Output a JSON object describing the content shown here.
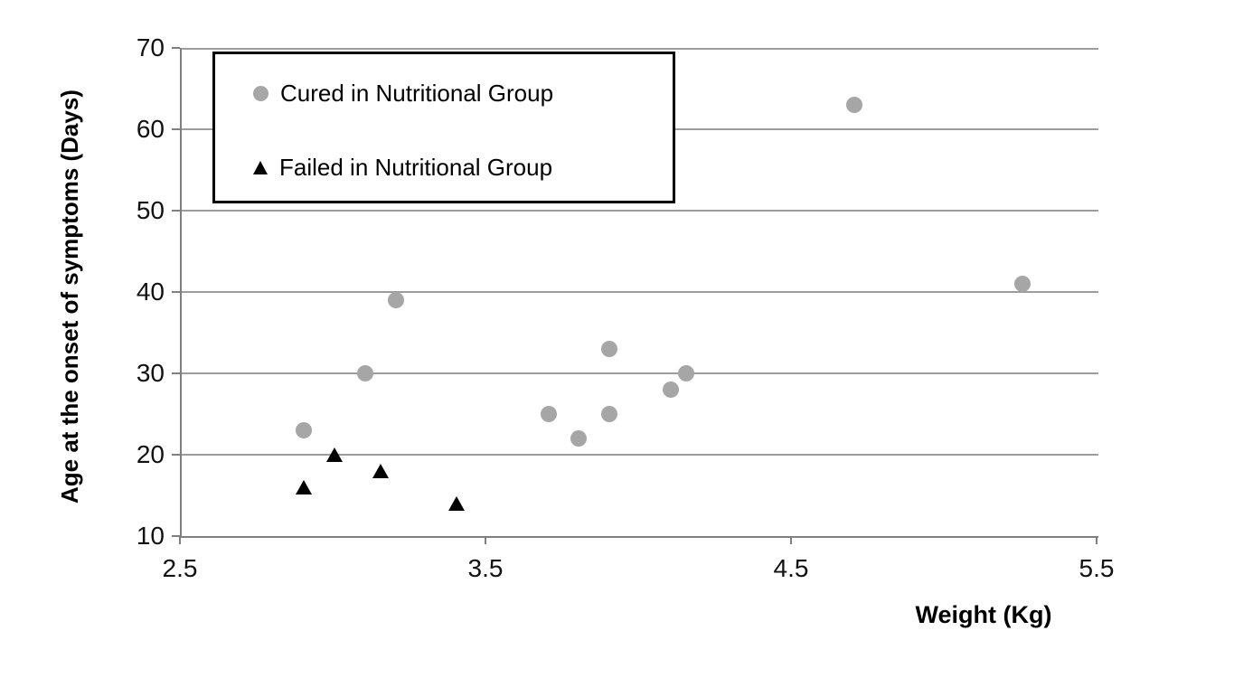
{
  "chart_data": {
    "type": "scatter",
    "title": "",
    "xlabel": "Weight (Kg)",
    "ylabel": "Age at the onset of symptoms (Days)",
    "xlim": [
      2.5,
      5.5
    ],
    "ylim": [
      10,
      70
    ],
    "x_ticks": [
      2.5,
      3.5,
      4.5,
      5.5
    ],
    "y_ticks": [
      10,
      20,
      30,
      40,
      50,
      60,
      70
    ],
    "grid": "horizontal-only",
    "legend_position": "top-left-inside",
    "series": [
      {
        "name": "Cured in Nutritional Group",
        "marker": "circle",
        "color": "#a6a6a6",
        "points": [
          [
            2.9,
            23
          ],
          [
            3.1,
            30
          ],
          [
            3.2,
            39
          ],
          [
            3.7,
            25
          ],
          [
            3.8,
            22
          ],
          [
            3.9,
            25
          ],
          [
            3.9,
            33
          ],
          [
            4.1,
            28
          ],
          [
            4.15,
            30
          ],
          [
            4.7,
            63
          ],
          [
            5.25,
            41
          ]
        ]
      },
      {
        "name": "Failed in Nutritional Group",
        "marker": "triangle",
        "color": "#000000",
        "points": [
          [
            2.9,
            16
          ],
          [
            3.0,
            20
          ],
          [
            3.15,
            18
          ],
          [
            3.4,
            14
          ]
        ]
      }
    ]
  },
  "colors": {
    "gridline": "#9d9d9d",
    "axis_line": "#7f7f7f",
    "tick_text": "#111111",
    "title_text": "#000000",
    "background": "#ffffff"
  }
}
